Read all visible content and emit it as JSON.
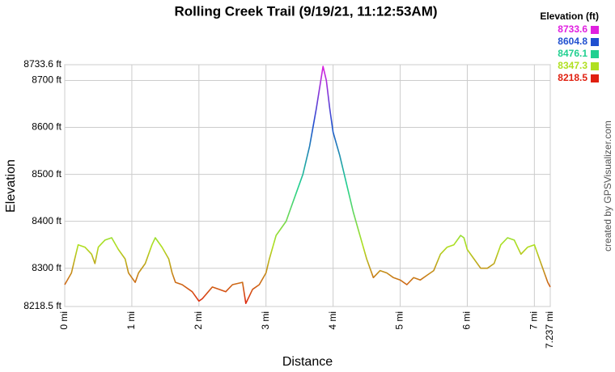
{
  "chart_data": {
    "type": "line",
    "title": "Rolling Creek Trail (9/19/21, 11:12:53AM)",
    "x_label": "Distance",
    "y_label": "Elevation",
    "credit": "created by GPSVisualizer.com",
    "legend": {
      "title": "Elevation (ft)",
      "entries": [
        {
          "label": "8733.6",
          "color": "#e020e0"
        },
        {
          "label": "8604.8",
          "color": "#2050d0"
        },
        {
          "label": "8476.1",
          "color": "#20d090"
        },
        {
          "label": "8347.3",
          "color": "#b0e020"
        },
        {
          "label": "8218.5",
          "color": "#e02010"
        }
      ]
    },
    "grid": true,
    "xlim": [
      0,
      7.237
    ],
    "xticks": [
      {
        "value": 0,
        "label": "0 mi"
      },
      {
        "value": 1,
        "label": "1 mi"
      },
      {
        "value": 2,
        "label": "2 mi"
      },
      {
        "value": 3,
        "label": "3 mi"
      },
      {
        "value": 4,
        "label": "4 mi"
      },
      {
        "value": 5,
        "label": "5 mi"
      },
      {
        "value": 6,
        "label": "6 mi"
      },
      {
        "value": 7,
        "label": "7 mi"
      },
      {
        "value": 7.237,
        "label": "7.237 mi"
      }
    ],
    "ylim": [
      8218.5,
      8733.6
    ],
    "yticks": [
      {
        "value": 8218.5,
        "label": "8218.5 ft"
      },
      {
        "value": 8300,
        "label": "8300 ft"
      },
      {
        "value": 8400,
        "label": "8400 ft"
      },
      {
        "value": 8500,
        "label": "8500 ft"
      },
      {
        "value": 8600,
        "label": "8600 ft"
      },
      {
        "value": 8700,
        "label": "8700 ft"
      },
      {
        "value": 8733.6,
        "label": "8733.6 ft"
      }
    ],
    "x": [
      0,
      0.1,
      0.15,
      0.2,
      0.3,
      0.4,
      0.45,
      0.5,
      0.6,
      0.7,
      0.8,
      0.9,
      0.95,
      1.0,
      1.05,
      1.1,
      1.2,
      1.3,
      1.35,
      1.45,
      1.55,
      1.6,
      1.65,
      1.75,
      1.9,
      2.0,
      2.05,
      2.2,
      2.3,
      2.4,
      2.5,
      2.65,
      2.7,
      2.8,
      2.9,
      3.0,
      3.05,
      3.15,
      3.3,
      3.35,
      3.45,
      3.55,
      3.65,
      3.75,
      3.85,
      3.9,
      3.95,
      4.0,
      4.1,
      4.2,
      4.3,
      4.4,
      4.5,
      4.6,
      4.7,
      4.8,
      4.9,
      5.0,
      5.1,
      5.2,
      5.3,
      5.4,
      5.5,
      5.6,
      5.7,
      5.8,
      5.9,
      5.95,
      6.0,
      6.1,
      6.2,
      6.3,
      6.4,
      6.5,
      6.6,
      6.7,
      6.8,
      6.9,
      7.0,
      7.1,
      7.2,
      7.237
    ],
    "values": [
      8265,
      8290,
      8320,
      8350,
      8345,
      8330,
      8310,
      8345,
      8360,
      8365,
      8340,
      8320,
      8290,
      8280,
      8270,
      8290,
      8310,
      8350,
      8365,
      8345,
      8320,
      8290,
      8270,
      8265,
      8250,
      8230,
      8235,
      8260,
      8255,
      8250,
      8265,
      8270,
      8225,
      8255,
      8265,
      8290,
      8320,
      8370,
      8400,
      8420,
      8460,
      8500,
      8560,
      8640,
      8730,
      8700,
      8640,
      8590,
      8540,
      8480,
      8420,
      8370,
      8320,
      8280,
      8295,
      8290,
      8280,
      8275,
      8265,
      8280,
      8275,
      8285,
      8295,
      8330,
      8345,
      8350,
      8370,
      8365,
      8340,
      8320,
      8300,
      8300,
      8310,
      8350,
      8365,
      8360,
      8330,
      8345,
      8350,
      8310,
      8270,
      8260
    ]
  }
}
